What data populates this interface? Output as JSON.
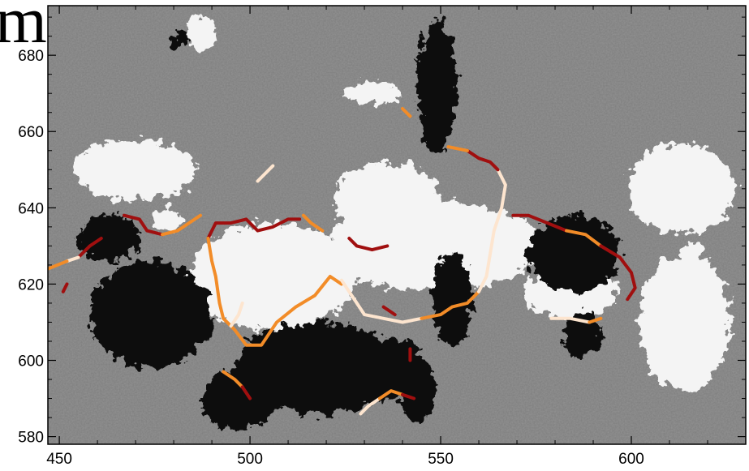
{
  "corner_text": "m",
  "chart_data": {
    "type": "image-with-contours",
    "title": "",
    "xlabel": "",
    "ylabel": "",
    "xlim": [
      447,
      630
    ],
    "ylim": [
      578,
      693
    ],
    "x_ticks": [
      450,
      500,
      550,
      600
    ],
    "y_ticks": [
      580,
      600,
      620,
      640,
      660,
      680
    ],
    "background": "grayscale magnetogram-like image: white = positive polarity patches, black = negative polarity patches, mid-gray field",
    "contour_colors": {
      "dark_red": "#a00f0f",
      "orange": "#f28c28",
      "pale": "#fde5cf"
    },
    "blobs": {
      "white": [
        {
          "cx": 506,
          "cy": 622,
          "rx": 22,
          "ry": 14
        },
        {
          "cx": 548,
          "cy": 630,
          "rx": 28,
          "ry": 12
        },
        {
          "cx": 584,
          "cy": 618,
          "rx": 12,
          "ry": 7
        },
        {
          "cx": 536,
          "cy": 642,
          "rx": 14,
          "ry": 10
        },
        {
          "cx": 470,
          "cy": 650,
          "rx": 16,
          "ry": 8
        },
        {
          "cx": 613,
          "cy": 645,
          "rx": 14,
          "ry": 12
        },
        {
          "cx": 614,
          "cy": 610,
          "rx": 12,
          "ry": 18
        },
        {
          "cx": 532,
          "cy": 670,
          "rx": 7,
          "ry": 3
        },
        {
          "cx": 478,
          "cy": 637,
          "rx": 4,
          "ry": 3
        },
        {
          "cx": 616,
          "cy": 628,
          "rx": 2.8,
          "ry": 2.8
        },
        {
          "cx": 487,
          "cy": 686,
          "rx": 4,
          "ry": 5
        }
      ],
      "black": [
        {
          "cx": 474,
          "cy": 612,
          "rx": 16,
          "ry": 14
        },
        {
          "cx": 518,
          "cy": 598,
          "rx": 22,
          "ry": 12
        },
        {
          "cx": 536,
          "cy": 598,
          "rx": 10,
          "ry": 8
        },
        {
          "cx": 497,
          "cy": 590,
          "rx": 10,
          "ry": 8
        },
        {
          "cx": 549,
          "cy": 672,
          "rx": 5,
          "ry": 18
        },
        {
          "cx": 553,
          "cy": 616,
          "rx": 5,
          "ry": 12
        },
        {
          "cx": 585,
          "cy": 628,
          "rx": 12,
          "ry": 10
        },
        {
          "cx": 587,
          "cy": 607,
          "rx": 5,
          "ry": 6
        },
        {
          "cx": 463,
          "cy": 632,
          "rx": 8,
          "ry": 6
        },
        {
          "cx": 544,
          "cy": 592,
          "rx": 5,
          "ry": 8
        },
        {
          "cx": 481,
          "cy": 684,
          "rx": 2,
          "ry": 2
        }
      ]
    },
    "contours": [
      {
        "color": "dark_red",
        "points": [
          [
            489,
            632
          ],
          [
            491,
            636
          ],
          [
            495,
            636
          ],
          [
            499,
            637
          ],
          [
            502,
            634
          ],
          [
            506,
            635
          ],
          [
            510,
            637
          ],
          [
            513,
            637
          ]
        ]
      },
      {
        "color": "orange",
        "points": [
          [
            489,
            632
          ],
          [
            490,
            626
          ],
          [
            491,
            622
          ],
          [
            492,
            615
          ],
          [
            493,
            611
          ],
          [
            496,
            608
          ],
          [
            499,
            604
          ],
          [
            503,
            604
          ],
          [
            507,
            610
          ],
          [
            512,
            614
          ],
          [
            517,
            617
          ],
          [
            521,
            622
          ],
          [
            524,
            620
          ]
        ]
      },
      {
        "color": "pale",
        "points": [
          [
            524,
            621
          ],
          [
            528,
            615
          ],
          [
            530,
            612
          ],
          [
            535,
            611
          ],
          [
            540,
            610
          ],
          [
            545,
            611
          ]
        ]
      },
      {
        "color": "orange",
        "points": [
          [
            545,
            611
          ],
          [
            550,
            612
          ],
          [
            553,
            614
          ],
          [
            557,
            615
          ],
          [
            560,
            618
          ]
        ]
      },
      {
        "color": "pale",
        "points": [
          [
            560,
            618
          ],
          [
            562,
            622
          ],
          [
            563,
            628
          ],
          [
            564,
            634
          ],
          [
            566,
            640
          ],
          [
            567,
            646
          ],
          [
            565,
            650
          ]
        ]
      },
      {
        "color": "dark_red",
        "points": [
          [
            565,
            650
          ],
          [
            563,
            652
          ],
          [
            560,
            653
          ],
          [
            557,
            655
          ]
        ]
      },
      {
        "color": "orange",
        "points": [
          [
            557,
            655
          ],
          [
            552,
            656
          ]
        ]
      },
      {
        "color": "dark_red",
        "points": [
          [
            526,
            632
          ],
          [
            528,
            630
          ],
          [
            532,
            629
          ],
          [
            536,
            630
          ]
        ]
      },
      {
        "color": "orange",
        "points": [
          [
            514,
            638
          ],
          [
            516,
            636
          ],
          [
            519,
            634
          ]
        ]
      },
      {
        "color": "dark_red",
        "points": [
          [
            467,
            638
          ],
          [
            471,
            637
          ],
          [
            473,
            634
          ],
          [
            477,
            633
          ]
        ]
      },
      {
        "color": "orange",
        "points": [
          [
            477,
            633
          ],
          [
            481,
            634
          ],
          [
            484,
            636
          ],
          [
            487,
            638
          ]
        ]
      },
      {
        "color": "dark_red",
        "points": [
          [
            569,
            638
          ],
          [
            573,
            638
          ],
          [
            578,
            636
          ],
          [
            583,
            634
          ]
        ]
      },
      {
        "color": "orange",
        "points": [
          [
            583,
            634
          ],
          [
            588,
            633
          ],
          [
            592,
            630
          ]
        ]
      },
      {
        "color": "dark_red",
        "points": [
          [
            592,
            630
          ],
          [
            597,
            627
          ],
          [
            600,
            623
          ],
          [
            601,
            619
          ],
          [
            599,
            616
          ]
        ]
      },
      {
        "color": "pale",
        "points": [
          [
            579,
            611
          ],
          [
            584,
            611
          ],
          [
            589,
            610
          ]
        ]
      },
      {
        "color": "orange",
        "points": [
          [
            589,
            610
          ],
          [
            592,
            611
          ]
        ]
      },
      {
        "color": "dark_red",
        "points": [
          [
            455,
            627
          ],
          [
            458,
            630
          ],
          [
            461,
            632
          ]
        ]
      },
      {
        "color": "pale",
        "points": [
          [
            452,
            626
          ],
          [
            455,
            627
          ]
        ]
      },
      {
        "color": "orange",
        "points": [
          [
            447,
            624
          ],
          [
            452,
            626
          ]
        ]
      },
      {
        "color": "dark_red",
        "points": [
          [
            451,
            618
          ],
          [
            452,
            620
          ]
        ]
      },
      {
        "color": "pale",
        "points": [
          [
            495,
            609
          ],
          [
            497,
            612
          ],
          [
            498,
            615
          ]
        ]
      },
      {
        "color": "orange",
        "points": [
          [
            493,
            597
          ],
          [
            496,
            595
          ],
          [
            498,
            593
          ]
        ]
      },
      {
        "color": "dark_red",
        "points": [
          [
            498,
            593
          ],
          [
            500,
            590
          ]
        ]
      },
      {
        "color": "pale",
        "points": [
          [
            529,
            586
          ],
          [
            531,
            588
          ],
          [
            534,
            590
          ]
        ]
      },
      {
        "color": "orange",
        "points": [
          [
            534,
            590
          ],
          [
            537,
            592
          ],
          [
            540,
            591
          ]
        ]
      },
      {
        "color": "dark_red",
        "points": [
          [
            540,
            591
          ],
          [
            543,
            590
          ]
        ]
      },
      {
        "color": "dark_red",
        "points": [
          [
            535,
            614
          ],
          [
            538,
            612
          ]
        ]
      },
      {
        "color": "dark_red",
        "points": [
          [
            542,
            603
          ],
          [
            542,
            600
          ]
        ]
      },
      {
        "color": "orange",
        "points": [
          [
            540,
            666
          ],
          [
            542,
            664
          ]
        ]
      },
      {
        "color": "pale",
        "points": [
          [
            502,
            647
          ],
          [
            504,
            649
          ],
          [
            506,
            651
          ]
        ]
      }
    ]
  }
}
